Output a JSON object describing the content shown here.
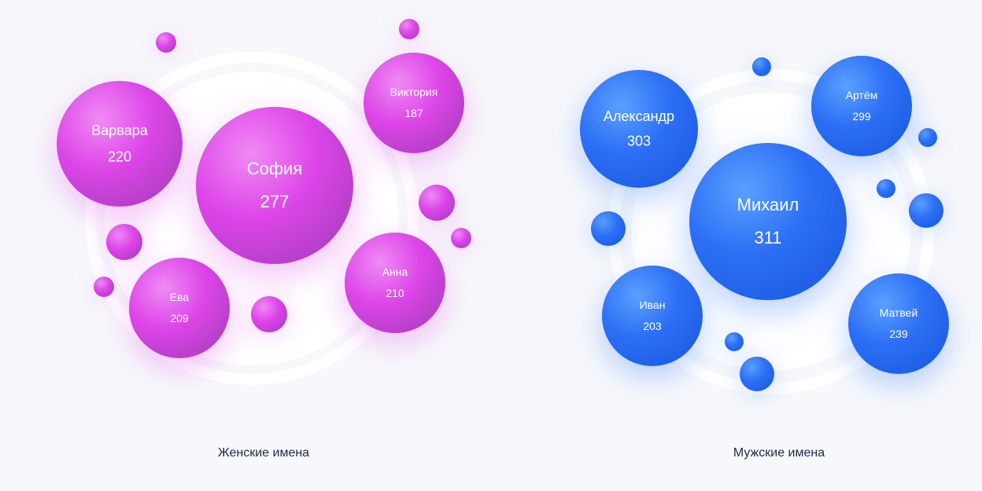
{
  "colors": {
    "female_light": "#f08af5",
    "female_mid": "#dd45e8",
    "female_dark": "#b43fc8",
    "male_light": "#5aa0ff",
    "male_mid": "#2c6ff5",
    "male_dark": "#1f5fe6",
    "caption": "#1d2a4a",
    "background": "#f7f8fb"
  },
  "chart_data": [
    {
      "type": "bubble",
      "title": "Женские имена",
      "labels": [
        "София",
        "Варвара",
        "Виктория",
        "Анна",
        "Ева"
      ],
      "values": [
        277,
        220,
        187,
        210,
        209
      ]
    },
    {
      "type": "bubble",
      "title": "Мужские имена",
      "labels": [
        "Михаил",
        "Александр",
        "Артём",
        "Матвей",
        "Иван"
      ],
      "values": [
        311,
        303,
        299,
        239,
        203
      ]
    }
  ]
}
